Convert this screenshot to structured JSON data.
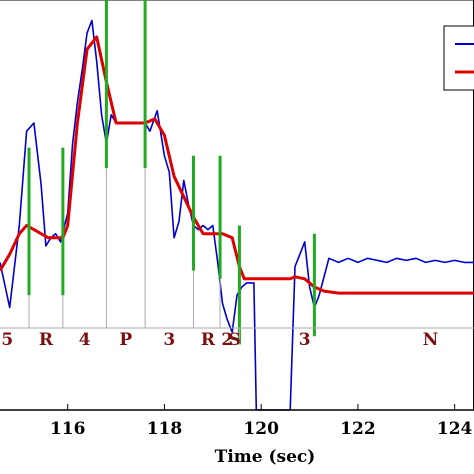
{
  "chart_data": {
    "type": "line",
    "title": "",
    "xlabel": "Time (sec)",
    "ylabel": "",
    "xlim": [
      114.6,
      124.4
    ],
    "ylim": [
      -1.0,
      9.0
    ],
    "x_ticks": [
      116,
      118,
      120,
      122,
      124
    ],
    "x_tick_labels": [
      "116",
      "118",
      "120",
      "122",
      "124"
    ],
    "grid": false,
    "legend": {
      "placement": "top-right",
      "entries": [
        {
          "name": "",
          "color": "#0000cc"
        },
        {
          "name": "",
          "color": "#dd0000"
        }
      ]
    },
    "colors": {
      "measured": "#0000cc",
      "smoothed": "#dd0000",
      "boundary": "#22aa22",
      "phase_line": "#aaaaaa",
      "phase_text": "#7a1010"
    },
    "series": [
      {
        "key": "measured",
        "color": "#0000cc",
        "x": [
          114.6,
          114.8,
          115.0,
          115.15,
          115.3,
          115.45,
          115.55,
          115.65,
          115.75,
          115.85,
          116.0,
          116.1,
          116.2,
          116.3,
          116.4,
          116.5,
          116.6,
          116.7,
          116.8,
          116.9,
          117.0,
          117.2,
          117.4,
          117.6,
          117.7,
          117.85,
          118.0,
          118.1,
          118.2,
          118.3,
          118.4,
          118.5,
          118.6,
          118.7,
          118.8,
          118.9,
          119.0,
          119.1,
          119.2,
          119.3,
          119.4,
          119.5,
          119.6,
          119.7,
          119.75,
          119.85,
          119.9,
          120.0,
          120.2,
          120.4,
          120.6,
          120.7,
          120.8,
          120.9,
          121.0,
          121.1,
          121.2,
          121.4,
          121.6,
          121.8,
          122.0,
          122.2,
          122.4,
          122.6,
          122.8,
          123.0,
          123.2,
          123.4,
          123.6,
          123.8,
          124.0,
          124.2,
          124.4
        ],
        "y": [
          2.6,
          1.5,
          3.5,
          5.8,
          6.0,
          4.5,
          3.0,
          3.2,
          3.3,
          3.1,
          3.8,
          5.5,
          6.5,
          7.3,
          8.2,
          8.5,
          7.5,
          6.2,
          5.5,
          6.2,
          6.0,
          6.0,
          6.0,
          6.0,
          5.8,
          6.3,
          5.2,
          4.8,
          3.2,
          3.6,
          4.6,
          4.0,
          3.5,
          3.4,
          3.5,
          3.4,
          3.5,
          2.6,
          1.6,
          1.2,
          0.9,
          1.8,
          2.0,
          2.1,
          2.1,
          2.1,
          -1.0,
          -1.0,
          -1.0,
          -1.0,
          -1.0,
          2.5,
          2.8,
          3.1,
          2.0,
          1.5,
          1.8,
          2.7,
          2.6,
          2.7,
          2.6,
          2.7,
          2.65,
          2.6,
          2.7,
          2.65,
          2.7,
          2.6,
          2.65,
          2.6,
          2.65,
          2.6,
          2.6
        ]
      },
      {
        "key": "smoothed",
        "color": "#dd0000",
        "x": [
          114.6,
          114.8,
          115.0,
          115.15,
          115.3,
          115.45,
          115.6,
          115.8,
          115.9,
          116.0,
          116.2,
          116.4,
          116.6,
          116.8,
          117.0,
          117.2,
          117.4,
          117.6,
          117.8,
          118.0,
          118.2,
          118.4,
          118.6,
          118.8,
          119.0,
          119.2,
          119.4,
          119.55,
          119.65,
          119.75,
          119.85,
          120.0,
          120.2,
          120.4,
          120.6,
          120.7,
          120.9,
          121.1,
          121.3,
          121.6,
          122.0,
          122.5,
          123.0,
          123.5,
          124.0,
          124.4
        ],
        "y": [
          2.4,
          2.8,
          3.3,
          3.5,
          3.4,
          3.3,
          3.2,
          3.2,
          3.2,
          3.5,
          6.0,
          7.8,
          8.1,
          7.0,
          6.0,
          6.0,
          6.0,
          6.0,
          6.1,
          5.7,
          4.7,
          4.2,
          3.7,
          3.3,
          3.3,
          3.3,
          3.2,
          2.5,
          2.2,
          2.2,
          2.2,
          2.2,
          2.2,
          2.2,
          2.2,
          2.25,
          2.2,
          2.0,
          1.9,
          1.85,
          1.85,
          1.85,
          1.85,
          1.85,
          1.85,
          1.85
        ]
      }
    ],
    "boundaries": [
      {
        "x": 115.2,
        "y1": 1.8,
        "y2": 5.4
      },
      {
        "x": 115.9,
        "y1": 1.8,
        "y2": 5.4
      },
      {
        "x": 116.8,
        "y1": 4.9,
        "y2": 9.0
      },
      {
        "x": 117.6,
        "y1": 4.9,
        "y2": 9.0
      },
      {
        "x": 118.6,
        "y1": 2.4,
        "y2": 5.2
      },
      {
        "x": 119.15,
        "y1": 2.2,
        "y2": 5.2
      },
      {
        "x": 119.55,
        "y1": 0.6,
        "y2": 3.5
      },
      {
        "x": 121.1,
        "y1": 0.8,
        "y2": 3.3
      }
    ],
    "phase_lines": [
      115.2,
      115.9,
      116.8,
      117.6,
      118.6,
      119.15,
      119.55
    ],
    "phase_baseline_y": 1.0,
    "phases": [
      {
        "label": "5",
        "x": 114.75
      },
      {
        "label": "R",
        "x": 115.55
      },
      {
        "label": "4",
        "x": 116.35
      },
      {
        "label": "P",
        "x": 117.2
      },
      {
        "label": "3",
        "x": 118.1
      },
      {
        "label": "R",
        "x": 118.9
      },
      {
        "label": "2",
        "x": 119.3
      },
      {
        "label": "S",
        "x": 119.45
      },
      {
        "label": "3",
        "x": 120.9
      },
      {
        "label": "N",
        "x": 123.5
      }
    ]
  }
}
